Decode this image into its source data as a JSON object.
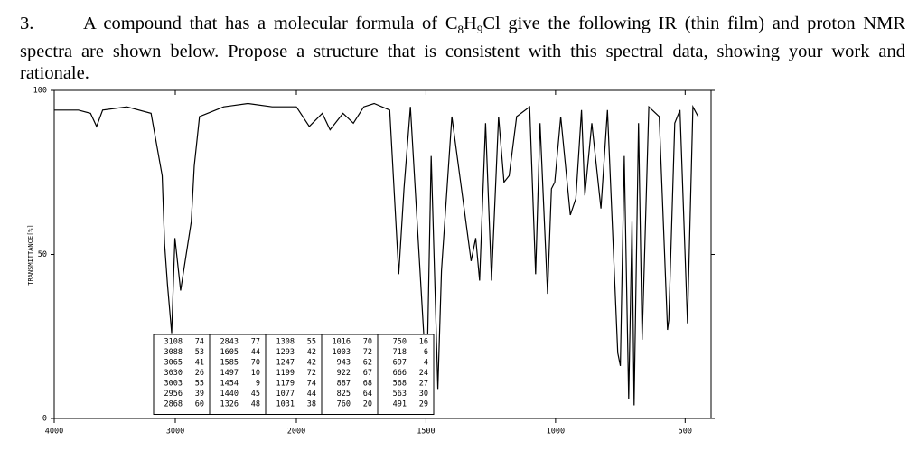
{
  "question": {
    "number": "3.",
    "text_before": "A compound that has a molecular formula of ",
    "formula": [
      "C",
      "8",
      "H",
      "9",
      "Cl"
    ],
    "text_after": " give the following IR (thin film) and proton NMR spectra are shown below. Propose a structure that is consistent with this spectral data, showing your work and rationale."
  },
  "chart_data": {
    "type": "line",
    "y_label": "TRANSMITTANCE[%]",
    "color": "#000000",
    "xlim": [
      4000,
      400
    ],
    "ylim": [
      0,
      100
    ],
    "xticks": [
      4000,
      3000,
      2000,
      1500,
      1000,
      500
    ],
    "yticks": [
      0,
      50,
      100
    ],
    "x": [
      4000,
      3800,
      3700,
      3650,
      3600,
      3400,
      3200,
      3108,
      3088,
      3065,
      3030,
      3003,
      2956,
      2868,
      2843,
      2800,
      2600,
      2400,
      2200,
      2000,
      1950,
      1900,
      1870,
      1820,
      1780,
      1740,
      1700,
      1640,
      1605,
      1585,
      1560,
      1497,
      1480,
      1454,
      1440,
      1400,
      1326,
      1308,
      1293,
      1270,
      1247,
      1220,
      1199,
      1179,
      1150,
      1100,
      1077,
      1060,
      1031,
      1016,
      1003,
      980,
      943,
      922,
      900,
      887,
      860,
      825,
      800,
      760,
      750,
      735,
      718,
      705,
      697,
      680,
      666,
      640,
      600,
      568,
      563,
      540,
      520,
      491,
      470,
      450
    ],
    "values": [
      94,
      94,
      93,
      89,
      94,
      95,
      93,
      74,
      53,
      41,
      26,
      55,
      39,
      60,
      77,
      92,
      95,
      96,
      95,
      95,
      89,
      93,
      88,
      93,
      90,
      95,
      96,
      94,
      44,
      70,
      95,
      10,
      80,
      9,
      45,
      92,
      48,
      55,
      42,
      90,
      42,
      92,
      72,
      74,
      92,
      95,
      44,
      90,
      38,
      70,
      72,
      92,
      62,
      67,
      94,
      68,
      90,
      64,
      94,
      20,
      16,
      80,
      6,
      60,
      4,
      90,
      24,
      95,
      92,
      27,
      30,
      90,
      94,
      29,
      95,
      92
    ],
    "peak_table": [
      [
        [
          3108,
          74
        ],
        [
          3088,
          53
        ],
        [
          3065,
          41
        ],
        [
          3030,
          26
        ],
        [
          3003,
          55
        ],
        [
          2956,
          39
        ],
        [
          2868,
          60
        ]
      ],
      [
        [
          2843,
          77
        ],
        [
          1605,
          44
        ],
        [
          1585,
          70
        ],
        [
          1497,
          10
        ],
        [
          1454,
          9
        ],
        [
          1440,
          45
        ],
        [
          1326,
          48
        ]
      ],
      [
        [
          1308,
          55
        ],
        [
          1293,
          42
        ],
        [
          1247,
          42
        ],
        [
          1199,
          72
        ],
        [
          1179,
          74
        ],
        [
          1077,
          44
        ],
        [
          1031,
          38
        ]
      ],
      [
        [
          1016,
          70
        ],
        [
          1003,
          72
        ],
        [
          943,
          62
        ],
        [
          922,
          67
        ],
        [
          887,
          68
        ],
        [
          825,
          64
        ],
        [
          760,
          20
        ]
      ],
      [
        [
          750,
          16
        ],
        [
          718,
          6
        ],
        [
          697,
          4
        ],
        [
          666,
          24
        ],
        [
          568,
          27
        ],
        [
          563,
          30
        ],
        [
          491,
          29
        ]
      ]
    ]
  }
}
